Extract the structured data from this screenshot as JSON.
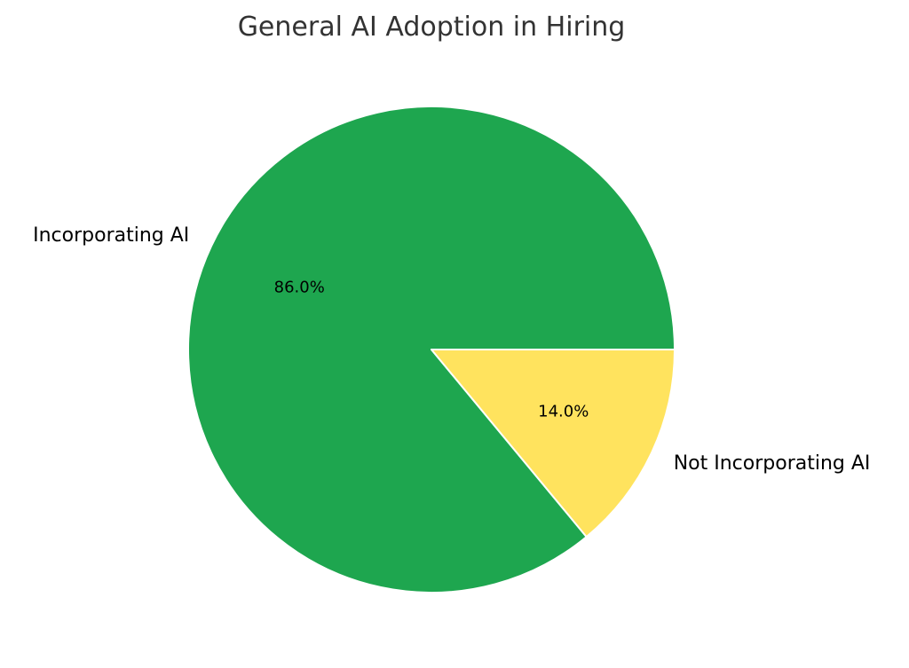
{
  "chart_data": {
    "type": "pie",
    "title": "General AI Adoption in Hiring",
    "slices": [
      {
        "label": "Incorporating AI",
        "value": 86.0,
        "percent_label": "86.0%",
        "color": "#1ea64f"
      },
      {
        "label": "Not Incorporating AI",
        "value": 14.0,
        "percent_label": "14.0%",
        "color": "#ffe35e"
      }
    ],
    "start_angle_deg": 0,
    "direction": "counterclockwise",
    "edge_color": "#ffffff",
    "legend": "none"
  }
}
